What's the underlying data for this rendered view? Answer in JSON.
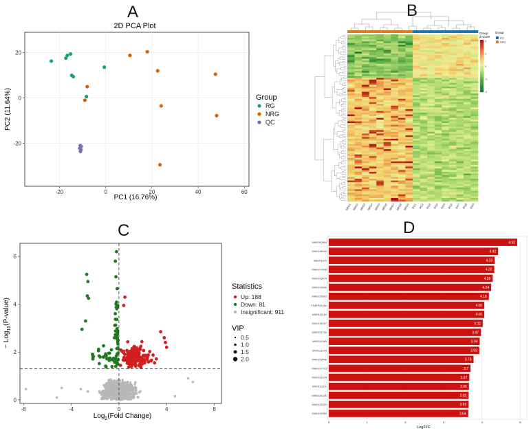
{
  "panels": {
    "a": "A",
    "b": "B",
    "c": "C",
    "d": "D"
  },
  "chart_data": [
    {
      "type": "scatter",
      "panel": "A",
      "title": "2D PCA Plot",
      "xlabel": "PC1 (16.76%)",
      "ylabel": "PC2 (11.64%)",
      "xlim": [
        -35,
        62
      ],
      "ylim": [
        -39,
        29
      ],
      "xticks": [
        -20,
        0,
        20,
        40,
        60
      ],
      "yticks": [
        20,
        0,
        -20
      ],
      "legend_title": "Group",
      "series": [
        {
          "name": "RG",
          "color": "#1b9e77",
          "points": [
            [
              -23.5,
              16.3
            ],
            [
              -17.2,
              17.6
            ],
            [
              -16.6,
              18.8
            ],
            [
              -15.2,
              19.4
            ],
            [
              -14.7,
              10.0
            ],
            [
              -14.0,
              9.4
            ],
            [
              -0.6,
              13.6
            ],
            [
              -8.3,
              0.6
            ]
          ]
        },
        {
          "name": "NRG",
          "color": "#d95f02",
          "points": [
            [
              -8.0,
              5.0
            ],
            [
              -9.0,
              -1.0
            ],
            [
              10.5,
              18.8
            ],
            [
              18.0,
              20.4
            ],
            [
              22.5,
              12.0
            ],
            [
              24.0,
              -3.5
            ],
            [
              47.5,
              10.5
            ],
            [
              48.0,
              -7.8
            ],
            [
              23.5,
              -29.5
            ]
          ]
        },
        {
          "name": "QC",
          "color": "#7570b3",
          "points": [
            [
              -11.0,
              -21.0
            ],
            [
              -10.6,
              -21.4
            ],
            [
              -11.2,
              -22.2
            ],
            [
              -10.7,
              -22.8
            ],
            [
              -10.9,
              -23.6
            ]
          ]
        }
      ]
    },
    {
      "type": "heatmap",
      "panel": "B",
      "legend_title": "Group",
      "zscore_title": "Z-score",
      "scale_ticks": [
        "4",
        "2",
        "0",
        "-2",
        "-4"
      ],
      "groups": [
        {
          "name": "RG",
          "color": "#1f78b4"
        },
        {
          "name": "NRG",
          "color": "#e07b20"
        }
      ],
      "columns": [
        "NRG1",
        "NRG2",
        "NRG3",
        "NRG4",
        "NRG5",
        "NRG6",
        "NRG7",
        "NRG8",
        "NRG9",
        "RG1",
        "RG2",
        "RG3",
        "RG4",
        "RG5",
        "RG6",
        "RG7",
        "RG8",
        "RG9"
      ],
      "column_groups": [
        "NRG",
        "NRG",
        "NRG",
        "NRG",
        "NRG",
        "NRG",
        "NRG",
        "NRG",
        "NRG",
        "RG",
        "RG",
        "RG",
        "RG",
        "RG",
        "RG",
        "RG",
        "RG",
        "RG"
      ],
      "row_count": 96
    },
    {
      "type": "scatter",
      "panel": "C",
      "xlabel": "Log2(Fold Change)",
      "ylabel": "-Log10(P-value)",
      "xlim": [
        -8.3,
        8.6
      ],
      "ylim": [
        -0.15,
        6.55
      ],
      "xticks": [
        -8,
        -4,
        0,
        4,
        8
      ],
      "yticks": [
        0,
        2,
        4,
        6
      ],
      "threshold_y": 1.3,
      "threshold_x": 0,
      "legend_title": "Statistics",
      "size_legend_title": "VIP",
      "size_legend": [
        "0.5",
        "1.0",
        "1.5",
        "2.0"
      ],
      "series": [
        {
          "name": "Up: 188",
          "color": "#d11f1f",
          "count": 188
        },
        {
          "name": "Down: 81",
          "color": "#1f7a1f",
          "count": 81
        },
        {
          "name": "Insignificant: 911",
          "color": "#b8b8b8",
          "count": 911
        }
      ],
      "highlight_down": [
        [
          -2.7,
          5.25
        ],
        [
          -2.6,
          4.95
        ],
        [
          -2.65,
          4.35
        ],
        [
          -2.55,
          4.25
        ],
        [
          -2.8,
          3.3
        ],
        [
          -3.1,
          2.95
        ],
        [
          -0.2,
          6.2
        ],
        [
          -0.3,
          5.8
        ],
        [
          -0.25,
          5.15
        ],
        [
          -0.15,
          4.65
        ]
      ],
      "highlight_up": [
        [
          0.5,
          4.3
        ],
        [
          0.4,
          3.95
        ],
        [
          3.5,
          2.85
        ],
        [
          3.8,
          2.6
        ],
        [
          4.0,
          2.2
        ],
        [
          3.9,
          2.4
        ]
      ]
    },
    {
      "type": "bar",
      "panel": "D",
      "orientation": "horizontal",
      "xlabel": "Log2FC",
      "xlim": [
        0,
        5.1
      ],
      "xticks": [
        0,
        1,
        2,
        3,
        4,
        5
      ],
      "bar_color": "#cc1111",
      "categories": [
        "MW0000084",
        "MW0156043",
        "MEDP1670",
        "MW0107898",
        "MW0105676",
        "MW0109096",
        "MW0155992",
        "FDATP01494",
        "MW0116161",
        "MW0136057",
        "MW0157769",
        "MW0111065",
        "MW0111578",
        "MW0105648",
        "MW0107713",
        "MW0151678",
        "MW0152611",
        "MW0154210",
        "MW0126020",
        "MW0103950"
      ],
      "values": [
        4.92,
        4.42,
        4.33,
        4.32,
        4.28,
        4.24,
        4.18,
        4.06,
        4.06,
        4.02,
        3.97,
        3.94,
        3.93,
        3.78,
        3.7,
        3.67,
        3.66,
        3.65,
        3.65,
        3.64
      ],
      "value_labels": [
        "4.92",
        "4.42",
        "4.33",
        "4.32",
        "4.28",
        "4.24",
        "4.18",
        "4.06",
        "4.06",
        "4.02",
        "3.97",
        "3.94",
        "3.93",
        "3.78",
        "3.7",
        "3.67",
        "3.66",
        "3.65",
        "3.65",
        "3.64"
      ]
    }
  ]
}
